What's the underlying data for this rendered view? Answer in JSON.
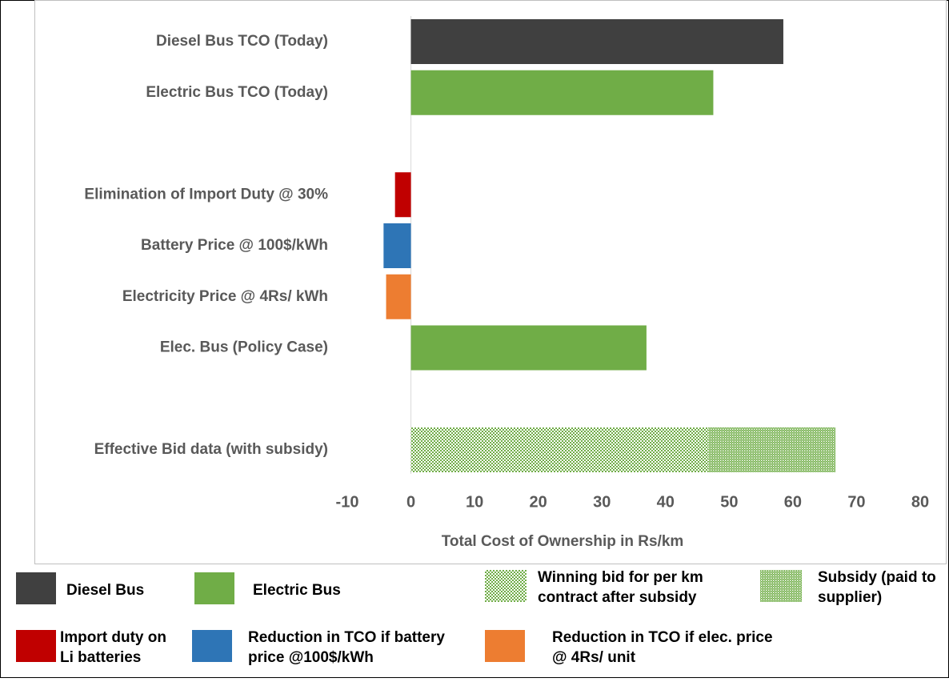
{
  "chart_data": {
    "type": "hbar_stacked",
    "xlabel": "Total Cost of Ownership in Rs/km",
    "categories": [
      "Diesel Bus TCO (Today)",
      "Electric Bus TCO (Today)",
      null,
      "Elimination of Import Duty @ 30%",
      "Battery Price @ 100$/kWh",
      "Electricity Price @ 4Rs/ kWh",
      "Elec. Bus (Policy Case)",
      null,
      "Effective Bid data (with subsidy)"
    ],
    "series": [
      {
        "name": "Diesel Bus",
        "color": "#404040",
        "values": [
          58.5,
          null,
          null,
          null,
          null,
          null,
          null,
          null,
          null
        ]
      },
      {
        "name": "Electric Bus",
        "color": "#70ad47",
        "values": [
          null,
          47.5,
          null,
          null,
          null,
          null,
          37,
          null,
          null
        ]
      },
      {
        "name": "Winning bid for per km contract after subsidy",
        "color": "#70ad47",
        "pattern": "checker",
        "values": [
          null,
          null,
          null,
          null,
          null,
          null,
          null,
          null,
          46.7
        ]
      },
      {
        "name": "Subsidy (paid to supplier)",
        "color": "#70ad47",
        "pattern": "fine",
        "values": [
          null,
          null,
          null,
          null,
          null,
          null,
          null,
          null,
          20
        ]
      },
      {
        "name": "Import duty on Li batteries",
        "color": "#c00000",
        "values": [
          null,
          null,
          null,
          -2.5,
          null,
          null,
          null,
          null,
          null
        ]
      },
      {
        "name": "Reduction in TCO if battery price @100$/kWh",
        "color": "#2e75b6",
        "values": [
          null,
          null,
          null,
          null,
          -4.3,
          null,
          null,
          null,
          null
        ]
      },
      {
        "name": "Reduction in TCO if elec. price @ 4Rs/ unit",
        "color": "#ed7d31",
        "values": [
          null,
          null,
          null,
          null,
          null,
          -3.9,
          null,
          null,
          null
        ]
      }
    ],
    "xlim": [
      -10,
      80
    ],
    "xticks": [
      -10,
      0,
      10,
      20,
      30,
      40,
      50,
      60,
      70,
      80
    ]
  }
}
